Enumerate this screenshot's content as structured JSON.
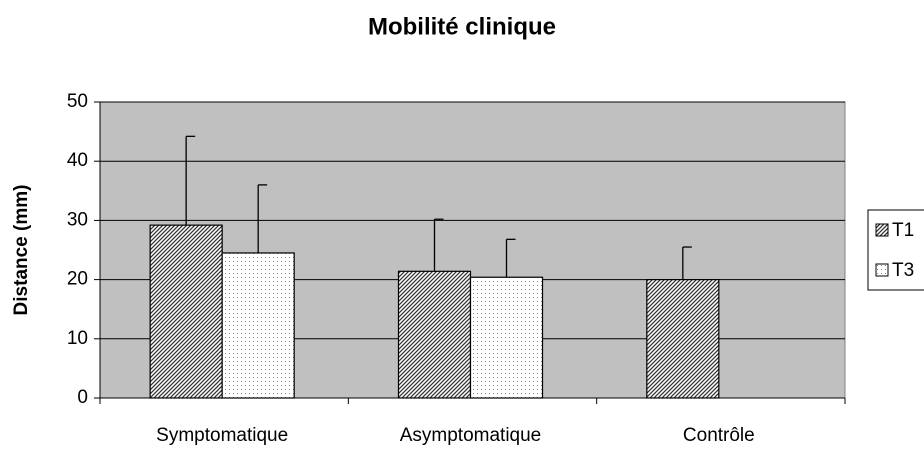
{
  "chart_data": {
    "type": "bar",
    "title": "Mobilité clinique",
    "y_label": "Distance (mm)",
    "categories": [
      "Symptomatique",
      "Asymptomatique",
      "Contrôle"
    ],
    "series": [
      {
        "name": "T1",
        "color": "#333333",
        "values": [
          29.2,
          21.4,
          20.0
        ],
        "errors": [
          15.0,
          8.8,
          5.5
        ]
      },
      {
        "name": "T3",
        "color": "#888888",
        "values": [
          24.5,
          20.4,
          null
        ],
        "errors": [
          11.5,
          6.4,
          null
        ]
      }
    ],
    "ylim": [
      0,
      50
    ],
    "yticks": [
      0,
      10,
      20,
      30,
      40,
      50
    ],
    "grid": true,
    "legend": "right"
  }
}
